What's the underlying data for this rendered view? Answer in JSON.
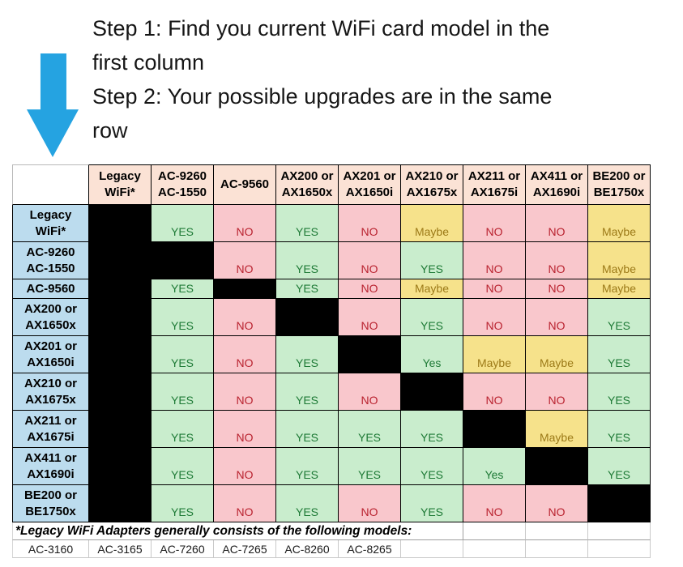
{
  "instructions": {
    "lines": [
      "Step 1: Find you current WiFi card model in the",
      "first column",
      "Step 2: Your possible upgrades are in the same",
      "row"
    ]
  },
  "chart_data": {
    "type": "table",
    "title": "WiFi card upgrade compatibility matrix",
    "columns": [
      "Legacy\nWiFi*",
      "AC-9260\nAC-1550",
      "AC-9560",
      "AX200 or\nAX1650x",
      "AX201 or\nAX1650i",
      "AX210 or\nAX1675x",
      "AX211 or\nAX1675i",
      "AX411 or\nAX1690i",
      "BE200 or\nBE1750x"
    ],
    "rows": [
      {
        "header": "Legacy\nWiFi*",
        "cells": [
          "",
          "YES",
          "NO",
          "YES",
          "NO",
          "Maybe",
          "NO",
          "NO",
          "Maybe"
        ]
      },
      {
        "header": "AC-9260\nAC-1550",
        "cells": [
          "",
          "",
          "NO",
          "YES",
          "NO",
          "YES",
          "NO",
          "NO",
          "Maybe"
        ]
      },
      {
        "header": "AC-9560",
        "cells": [
          "",
          "YES",
          "",
          "YES",
          "NO",
          "Maybe",
          "NO",
          "NO",
          "Maybe"
        ]
      },
      {
        "header": "AX200 or\nAX1650x",
        "cells": [
          "",
          "YES",
          "NO",
          "",
          "NO",
          "YES",
          "NO",
          "NO",
          "YES"
        ]
      },
      {
        "header": "AX201 or\nAX1650i",
        "cells": [
          "",
          "YES",
          "NO",
          "YES",
          "",
          "Yes",
          "Maybe",
          "Maybe",
          "YES"
        ]
      },
      {
        "header": "AX210 or\nAX1675x",
        "cells": [
          "",
          "YES",
          "NO",
          "YES",
          "NO",
          "",
          "NO",
          "NO",
          "YES"
        ]
      },
      {
        "header": "AX211 or\nAX1675i",
        "cells": [
          "",
          "YES",
          "NO",
          "YES",
          "YES",
          "YES",
          "",
          "Maybe",
          "YES"
        ]
      },
      {
        "header": "AX411 or\nAX1690i",
        "cells": [
          "",
          "YES",
          "NO",
          "YES",
          "YES",
          "YES",
          "Yes",
          "",
          "YES"
        ]
      },
      {
        "header": "BE200 or\nBE1750x",
        "cells": [
          "",
          "YES",
          "NO",
          "YES",
          "NO",
          "YES",
          "NO",
          "NO",
          ""
        ]
      }
    ]
  },
  "footer": {
    "note": "*Legacy WiFi Adapters generally consists of the following models:",
    "models": [
      "AC-3160",
      "AC-3165",
      "AC-7260",
      "AC-7265",
      "AC-8260",
      "AC-8265"
    ]
  },
  "colors": {
    "arrow": "#25a3e1",
    "header_bg": "#fbe2d5",
    "row_header_bg": "#bcdcee",
    "yes_bg": "#c9edcd",
    "yes_text": "#1e7a36",
    "no_bg": "#f9c7cc",
    "no_text": "#b9222f",
    "maybe_bg": "#f6e28b",
    "maybe_text": "#9c7a18",
    "diagonal_black": "#000000"
  }
}
